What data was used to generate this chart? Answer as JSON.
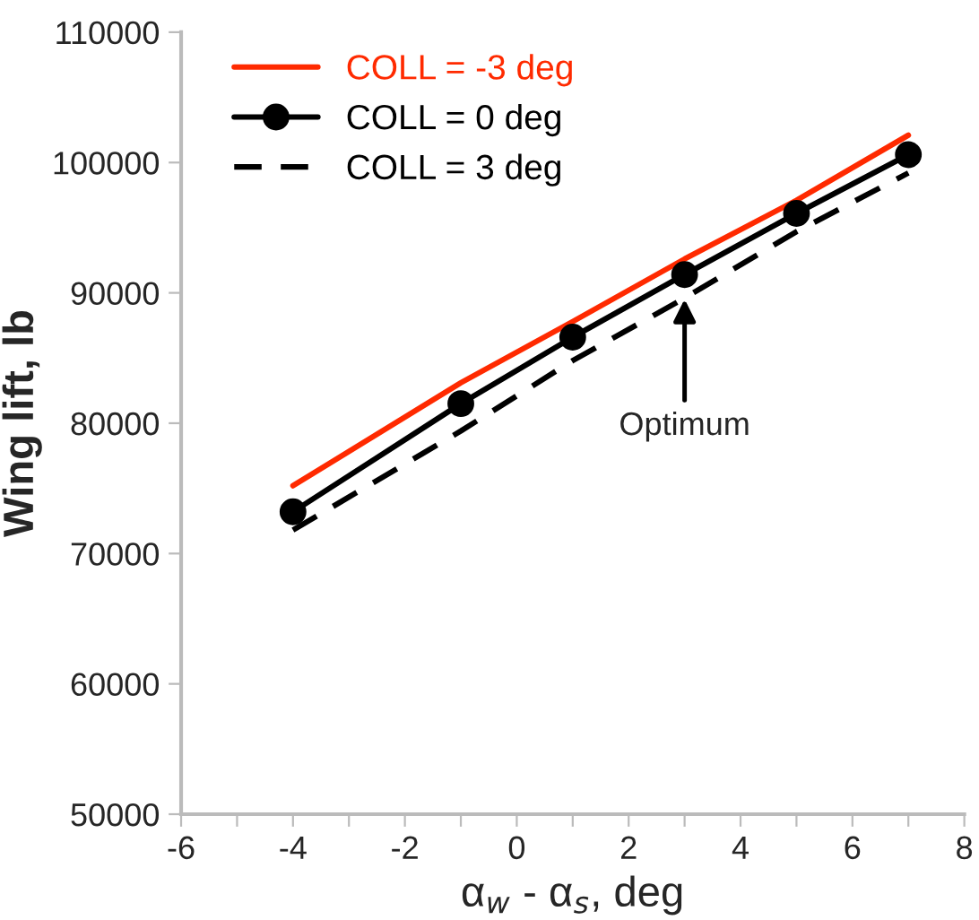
{
  "chart_data": {
    "type": "line",
    "xlabel": "α$_{w}$ - α$_{s}$, deg",
    "ylabel": "Wing lift, lb",
    "x": [
      -4,
      -1,
      1,
      3,
      5,
      7
    ],
    "series": [
      {
        "name": "COLL = -3 deg",
        "color": "#ff2a00",
        "marker": "none",
        "line_style": "solid",
        "values": [
          75200,
          83100,
          87800,
          92600,
          97100,
          102100
        ]
      },
      {
        "name": "COLL = 0 deg",
        "color": "#000000",
        "marker": "circle",
        "line_style": "solid",
        "values": [
          73200,
          81500,
          86600,
          91400,
          96100,
          100600
        ]
      },
      {
        "name": "COLL = 3 deg",
        "color": "#000000",
        "marker": "none",
        "line_style": "dashed",
        "values": [
          71800,
          79400,
          84800,
          89600,
          94700,
          99200
        ]
      }
    ],
    "xlim": [
      -6,
      8
    ],
    "ylim": [
      50000,
      110000
    ],
    "xticks": [
      -6,
      {
        "value": -5,
        "label": null
      },
      -4,
      {
        "value": -3,
        "label": null
      },
      -2,
      {
        "value": -1,
        "label": null
      },
      0,
      {
        "value": 1,
        "label": null
      },
      2,
      {
        "value": 3,
        "label": null
      },
      4,
      {
        "value": 5,
        "label": null
      },
      6,
      {
        "value": 7,
        "label": null
      },
      8
    ],
    "yticks": [
      50000,
      60000,
      70000,
      80000,
      90000,
      100000,
      110000
    ],
    "annotations": [
      {
        "text": "Optimum",
        "x": 3,
        "y": 89900
      }
    ],
    "legend": "top left",
    "grid": false
  }
}
